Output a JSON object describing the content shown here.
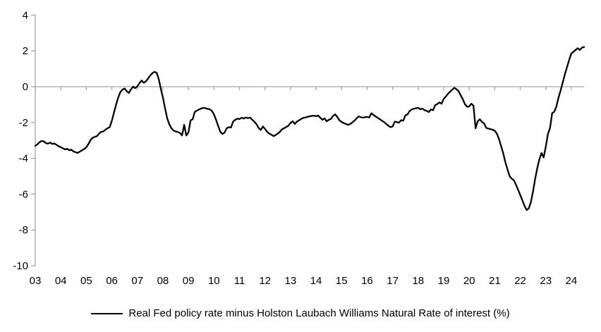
{
  "chart_data": {
    "type": "line",
    "title": "",
    "legend": "Real Fed policy rate minus Holston Laubach Williams Natural Rate of interest (%)",
    "xlabel": "",
    "ylabel": "",
    "ylim": [
      -10,
      4
    ],
    "y_ticks": [
      4,
      2,
      0,
      -2,
      -4,
      -6,
      -8,
      -10
    ],
    "x_tick_labels": [
      "03",
      "04",
      "05",
      "06",
      "07",
      "08",
      "09",
      "10",
      "11",
      "12",
      "13",
      "14",
      "15",
      "16",
      "17",
      "18",
      "19",
      "20",
      "21",
      "22",
      "23",
      "24"
    ],
    "x_start_year": 2003,
    "frequency": "monthly",
    "grid": false,
    "zero_axis_line": true,
    "axis_color": "#a6a6a6",
    "text_color": "#000000",
    "legend_position": "bottom-center",
    "series": [
      {
        "name": "Real Fed policy rate minus Holston Laubach Williams Natural Rate of interest (%)",
        "color": "#000000",
        "values": [
          -3.3,
          -3.22,
          -3.1,
          -3.03,
          -3.05,
          -3.15,
          -3.18,
          -3.12,
          -3.2,
          -3.17,
          -3.25,
          -3.33,
          -3.38,
          -3.44,
          -3.5,
          -3.47,
          -3.55,
          -3.52,
          -3.62,
          -3.66,
          -3.7,
          -3.62,
          -3.55,
          -3.48,
          -3.38,
          -3.2,
          -2.98,
          -2.85,
          -2.8,
          -2.76,
          -2.62,
          -2.52,
          -2.5,
          -2.4,
          -2.32,
          -2.26,
          -1.9,
          -1.45,
          -1.0,
          -0.6,
          -0.3,
          -0.16,
          -0.1,
          -0.25,
          -0.35,
          -0.15,
          0.0,
          -0.08,
          0.02,
          0.2,
          0.35,
          0.22,
          0.3,
          0.45,
          0.62,
          0.75,
          0.83,
          0.79,
          0.45,
          -0.1,
          -0.6,
          -1.2,
          -1.75,
          -2.1,
          -2.32,
          -2.45,
          -2.5,
          -2.53,
          -2.58,
          -2.72,
          -2.13,
          -2.72,
          -2.56,
          -1.88,
          -1.82,
          -1.4,
          -1.34,
          -1.27,
          -1.22,
          -1.18,
          -1.2,
          -1.24,
          -1.26,
          -1.35,
          -1.54,
          -1.85,
          -2.2,
          -2.52,
          -2.64,
          -2.56,
          -2.32,
          -2.26,
          -2.28,
          -1.95,
          -1.85,
          -1.78,
          -1.81,
          -1.73,
          -1.78,
          -1.72,
          -1.76,
          -1.72,
          -1.85,
          -1.95,
          -2.1,
          -2.3,
          -2.42,
          -2.22,
          -2.36,
          -2.52,
          -2.62,
          -2.68,
          -2.76,
          -2.7,
          -2.62,
          -2.52,
          -2.38,
          -2.32,
          -2.25,
          -2.18,
          -2.02,
          -1.93,
          -2.08,
          -1.95,
          -1.88,
          -1.8,
          -1.74,
          -1.72,
          -1.68,
          -1.66,
          -1.63,
          -1.62,
          -1.65,
          -1.61,
          -1.73,
          -1.85,
          -1.77,
          -1.93,
          -1.85,
          -1.8,
          -1.63,
          -1.54,
          -1.7,
          -1.88,
          -1.97,
          -2.03,
          -2.08,
          -2.13,
          -2.09,
          -2.0,
          -1.9,
          -1.78,
          -1.66,
          -1.7,
          -1.73,
          -1.7,
          -1.69,
          -1.72,
          -1.48,
          -1.58,
          -1.66,
          -1.74,
          -1.82,
          -1.9,
          -1.98,
          -2.08,
          -2.18,
          -2.26,
          -2.22,
          -1.95,
          -1.98,
          -2.01,
          -1.87,
          -1.9,
          -1.6,
          -1.55,
          -1.36,
          -1.27,
          -1.23,
          -1.2,
          -1.18,
          -1.26,
          -1.22,
          -1.31,
          -1.35,
          -1.42,
          -1.27,
          -1.31,
          -1.03,
          -0.97,
          -0.88,
          -0.95,
          -0.68,
          -0.55,
          -0.4,
          -0.28,
          -0.17,
          -0.06,
          -0.14,
          -0.25,
          -0.48,
          -0.7,
          -0.98,
          -1.12,
          -1.1,
          -0.95,
          -1.06,
          -2.32,
          -1.93,
          -1.82,
          -1.97,
          -2.05,
          -2.3,
          -2.34,
          -2.37,
          -2.4,
          -2.46,
          -2.62,
          -2.92,
          -3.32,
          -3.72,
          -4.22,
          -4.62,
          -5.0,
          -5.14,
          -5.22,
          -5.48,
          -5.76,
          -6.05,
          -6.35,
          -6.65,
          -6.89,
          -6.8,
          -6.45,
          -5.85,
          -5.15,
          -4.55,
          -4.05,
          -3.7,
          -3.95,
          -3.35,
          -2.65,
          -2.3,
          -1.48,
          -1.4,
          -1.1,
          -0.6,
          -0.2,
          0.25,
          0.7,
          1.1,
          1.5,
          1.85,
          1.95,
          2.05,
          2.15,
          2.05,
          2.18,
          2.22
        ]
      }
    ]
  }
}
